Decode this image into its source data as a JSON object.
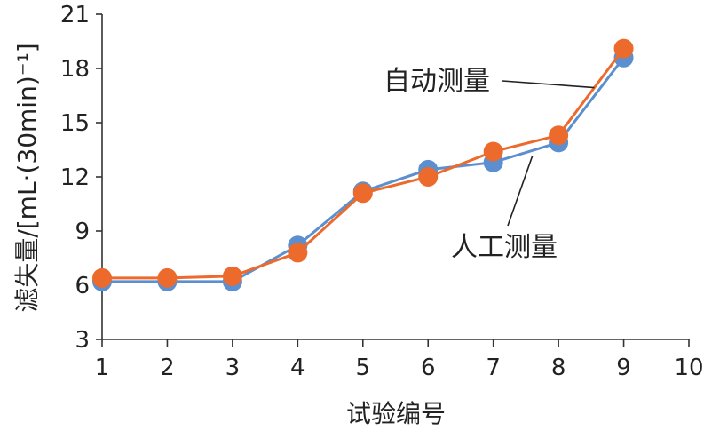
{
  "chart_data": {
    "type": "line",
    "title": "",
    "xlabel": "试验编号",
    "ylabel": "滤失量/[mL·(30min)⁻¹]",
    "x": [
      1,
      2,
      3,
      4,
      5,
      6,
      7,
      8,
      9
    ],
    "x_ticks": [
      "1",
      "2",
      "3",
      "4",
      "5",
      "6",
      "7",
      "8",
      "9",
      "10"
    ],
    "y_ticks": [
      "3",
      "6",
      "9",
      "12",
      "15",
      "18",
      "21"
    ],
    "xlim": [
      1,
      10
    ],
    "ylim": [
      3,
      21
    ],
    "grid": false,
    "legend": "none",
    "series": [
      {
        "name": "人工测量",
        "color": "#5B8FCF",
        "values": [
          6.2,
          6.2,
          6.2,
          8.2,
          11.2,
          12.4,
          12.8,
          13.9,
          18.6
        ]
      },
      {
        "name": "自动测量",
        "color": "#EC6A2B",
        "values": [
          6.4,
          6.4,
          6.5,
          7.8,
          11.1,
          12.0,
          13.4,
          14.3,
          19.1
        ]
      }
    ]
  }
}
